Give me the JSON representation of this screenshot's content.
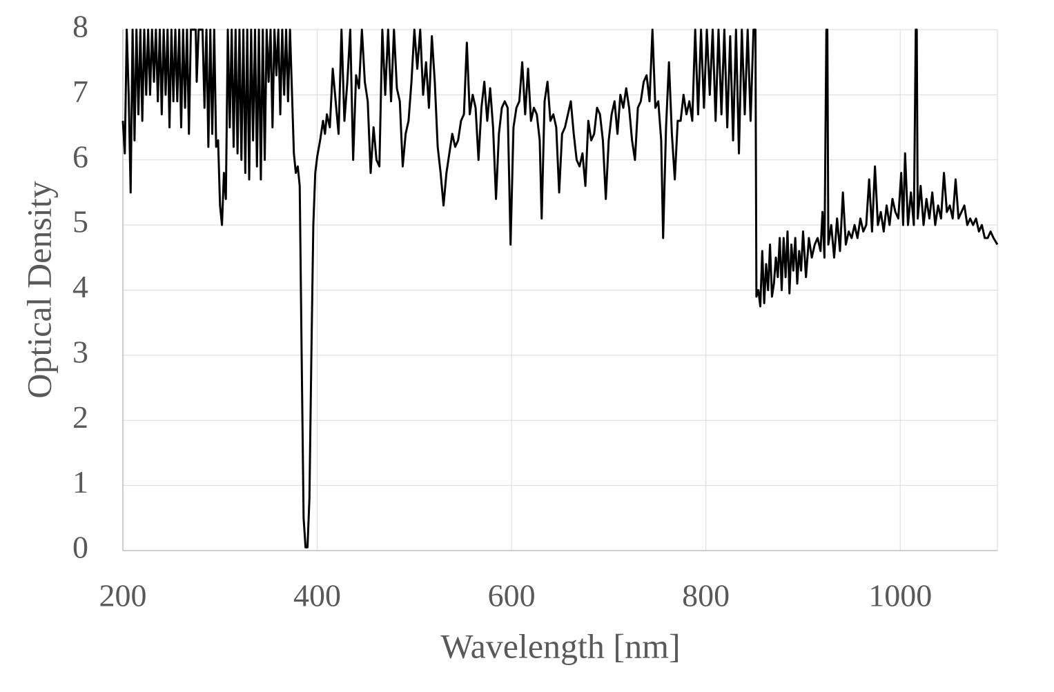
{
  "chart_data": {
    "type": "line",
    "x_label": "Wavelength [nm]",
    "y_label": "Optical Density",
    "xlim": [
      200,
      1100
    ],
    "ylim": [
      0,
      8
    ],
    "xticks": [
      200,
      400,
      600,
      800,
      1000
    ],
    "yticks": [
      0,
      1,
      2,
      3,
      4,
      5,
      6,
      7,
      8
    ],
    "grid": true,
    "series": [
      {
        "color": "#000000",
        "x": [
          200,
          202,
          204,
          206,
          208,
          210,
          212,
          214,
          216,
          218,
          220,
          222,
          224,
          226,
          228,
          230,
          232,
          234,
          236,
          238,
          240,
          242,
          244,
          246,
          248,
          250,
          252,
          254,
          256,
          258,
          260,
          262,
          264,
          266,
          268,
          270,
          275,
          276,
          278,
          282,
          284,
          286,
          288,
          290,
          292,
          294,
          296,
          298,
          300,
          302,
          304,
          306,
          308,
          310,
          312,
          314,
          316,
          318,
          320,
          322,
          324,
          326,
          328,
          330,
          332,
          334,
          336,
          338,
          340,
          342,
          344,
          346,
          348,
          350,
          352,
          354,
          356,
          358,
          360,
          362,
          364,
          366,
          368,
          370,
          372,
          376,
          378,
          380,
          382,
          384,
          386,
          388,
          390,
          392,
          394,
          396,
          398,
          400,
          403,
          406,
          408,
          410,
          413,
          416,
          419,
          422,
          425,
          428,
          431,
          434,
          437,
          440,
          443,
          446,
          449,
          452,
          455,
          458,
          461,
          464,
          467,
          470,
          473,
          476,
          479,
          482,
          485,
          488,
          491,
          494,
          497,
          500,
          503,
          506,
          509,
          512,
          515,
          518,
          521,
          524,
          527,
          530,
          533,
          536,
          539,
          542,
          545,
          548,
          551,
          554,
          557,
          560,
          563,
          566,
          569,
          572,
          575,
          578,
          581,
          584,
          587,
          590,
          593,
          596,
          599,
          602,
          605,
          608,
          611,
          614,
          617,
          620,
          623,
          626,
          629,
          631,
          634,
          637,
          640,
          643,
          646,
          649,
          652,
          655,
          658,
          661,
          664,
          667,
          670,
          673,
          676,
          679,
          682,
          685,
          688,
          691,
          694,
          697,
          700,
          703,
          706,
          709,
          712,
          715,
          718,
          721,
          724,
          727,
          730,
          733,
          736,
          739,
          742,
          745,
          748,
          751,
          754,
          756,
          759,
          762,
          765,
          768,
          771,
          774,
          777,
          780,
          783,
          786,
          789,
          792,
          795,
          798,
          801,
          804,
          807,
          810,
          813,
          816,
          819,
          822,
          825,
          828,
          831,
          834,
          837,
          840,
          843,
          846,
          849,
          851,
          852,
          854,
          856,
          858,
          860,
          862,
          864,
          866,
          868,
          870,
          872,
          874,
          876,
          878,
          880,
          882,
          884,
          886,
          888,
          890,
          892,
          894,
          896,
          898,
          900,
          903,
          906,
          909,
          912,
          915,
          918,
          920,
          922,
          924,
          925,
          926,
          929,
          932,
          935,
          938,
          941,
          944,
          947,
          950,
          953,
          956,
          959,
          962,
          965,
          968,
          971,
          974,
          977,
          980,
          983,
          986,
          989,
          992,
          995,
          998,
          1001,
          1003,
          1005,
          1008,
          1011,
          1014,
          1016,
          1017,
          1018,
          1021,
          1024,
          1027,
          1030,
          1033,
          1036,
          1039,
          1042,
          1045,
          1048,
          1051,
          1054,
          1057,
          1060,
          1063,
          1066,
          1069,
          1072,
          1075,
          1078,
          1081,
          1084,
          1087,
          1090,
          1093,
          1096,
          1100
        ],
        "values": [
          6.6,
          6.1,
          8,
          7.0,
          5.5,
          8,
          6.3,
          8,
          6.7,
          8,
          6.6,
          8,
          7.0,
          8,
          7.0,
          8,
          7.2,
          8,
          6.9,
          8,
          6.7,
          8,
          7.0,
          8,
          6.5,
          8,
          6.9,
          8,
          6.9,
          8,
          6.5,
          8,
          6.8,
          8,
          6.4,
          8,
          8,
          7.2,
          8,
          8,
          6.8,
          8,
          6.2,
          8,
          6.4,
          8,
          6.2,
          6.3,
          5.3,
          5.0,
          5.8,
          5.4,
          8,
          6.5,
          8,
          6.2,
          8,
          6.1,
          8,
          6.0,
          8,
          5.8,
          8,
          5.7,
          8,
          6.3,
          8,
          5.9,
          8,
          5.7,
          8,
          6.0,
          8,
          7.2,
          8,
          6.5,
          8,
          7.3,
          8,
          6.7,
          8,
          7.0,
          8,
          6.9,
          8,
          6.1,
          5.8,
          5.9,
          5.6,
          3.0,
          0.5,
          0.05,
          0.05,
          0.8,
          3.0,
          5.0,
          5.8,
          6.05,
          6.3,
          6.6,
          6.4,
          6.7,
          6.5,
          7.4,
          6.9,
          6.4,
          8,
          6.6,
          7.2,
          8,
          6.0,
          7.3,
          7.1,
          8,
          7.2,
          6.9,
          5.8,
          6.5,
          6.0,
          5.9,
          8,
          7.0,
          8,
          6.9,
          8,
          7.1,
          6.9,
          5.9,
          6.4,
          6.6,
          7.2,
          8,
          7.4,
          8,
          7.0,
          7.5,
          6.8,
          7.9,
          7.2,
          6.2,
          5.8,
          5.3,
          5.8,
          6.1,
          6.4,
          6.2,
          6.3,
          6.6,
          6.7,
          7.8,
          6.7,
          7.0,
          6.8,
          6.0,
          6.8,
          7.2,
          6.6,
          7.1,
          6.5,
          5.4,
          6.4,
          6.8,
          6.9,
          6.8,
          4.7,
          6.5,
          6.8,
          6.9,
          7.5,
          6.7,
          7.4,
          6.6,
          6.8,
          6.7,
          6.3,
          5.1,
          6.9,
          7.2,
          6.6,
          6.7,
          6.5,
          5.5,
          6.4,
          6.5,
          6.7,
          6.9,
          6.4,
          6.0,
          5.9,
          6.1,
          5.6,
          6.6,
          6.3,
          6.4,
          6.8,
          6.7,
          6.3,
          5.4,
          6.3,
          6.7,
          6.9,
          6.4,
          7.0,
          6.8,
          7.1,
          6.8,
          6.3,
          6.0,
          6.8,
          6.9,
          7.2,
          7.3,
          6.9,
          8,
          6.8,
          6.9,
          6.3,
          4.8,
          6.5,
          7.5,
          6.4,
          5.7,
          6.6,
          6.6,
          7.0,
          6.7,
          6.9,
          6.6,
          8,
          6.7,
          8,
          6.8,
          8,
          7.0,
          8,
          6.6,
          8,
          6.7,
          8,
          6.5,
          7.9,
          6.3,
          8,
          6.1,
          8,
          6.7,
          8,
          6.6,
          8,
          8,
          3.9,
          4.0,
          3.75,
          4.6,
          3.8,
          4.4,
          4.0,
          4.7,
          3.9,
          4.1,
          4.5,
          4.2,
          4.8,
          4.0,
          4.8,
          4.2,
          4.9,
          3.95,
          4.7,
          4.3,
          4.8,
          4.1,
          4.6,
          4.3,
          4.9,
          4.2,
          4.8,
          4.5,
          4.7,
          4.8,
          4.6,
          5.2,
          4.5,
          8,
          8,
          4.7,
          5.0,
          4.5,
          5.1,
          4.6,
          5.5,
          4.7,
          4.9,
          4.8,
          5.0,
          4.8,
          5.1,
          4.9,
          5.0,
          5.7,
          4.9,
          5.9,
          5.0,
          5.2,
          4.9,
          5.3,
          5.0,
          5.4,
          5.2,
          5.1,
          5.8,
          5.0,
          6.1,
          5.0,
          5.5,
          5.0,
          8,
          8,
          5.1,
          5.6,
          5.0,
          5.4,
          5.1,
          5.5,
          5.0,
          5.3,
          5.1,
          5.8,
          5.2,
          5.3,
          5.1,
          5.7,
          5.1,
          5.2,
          5.3,
          5.0,
          5.1,
          5.0,
          5.1,
          4.9,
          5.0,
          4.8,
          4.8,
          4.9,
          4.8,
          4.7
        ]
      }
    ]
  }
}
